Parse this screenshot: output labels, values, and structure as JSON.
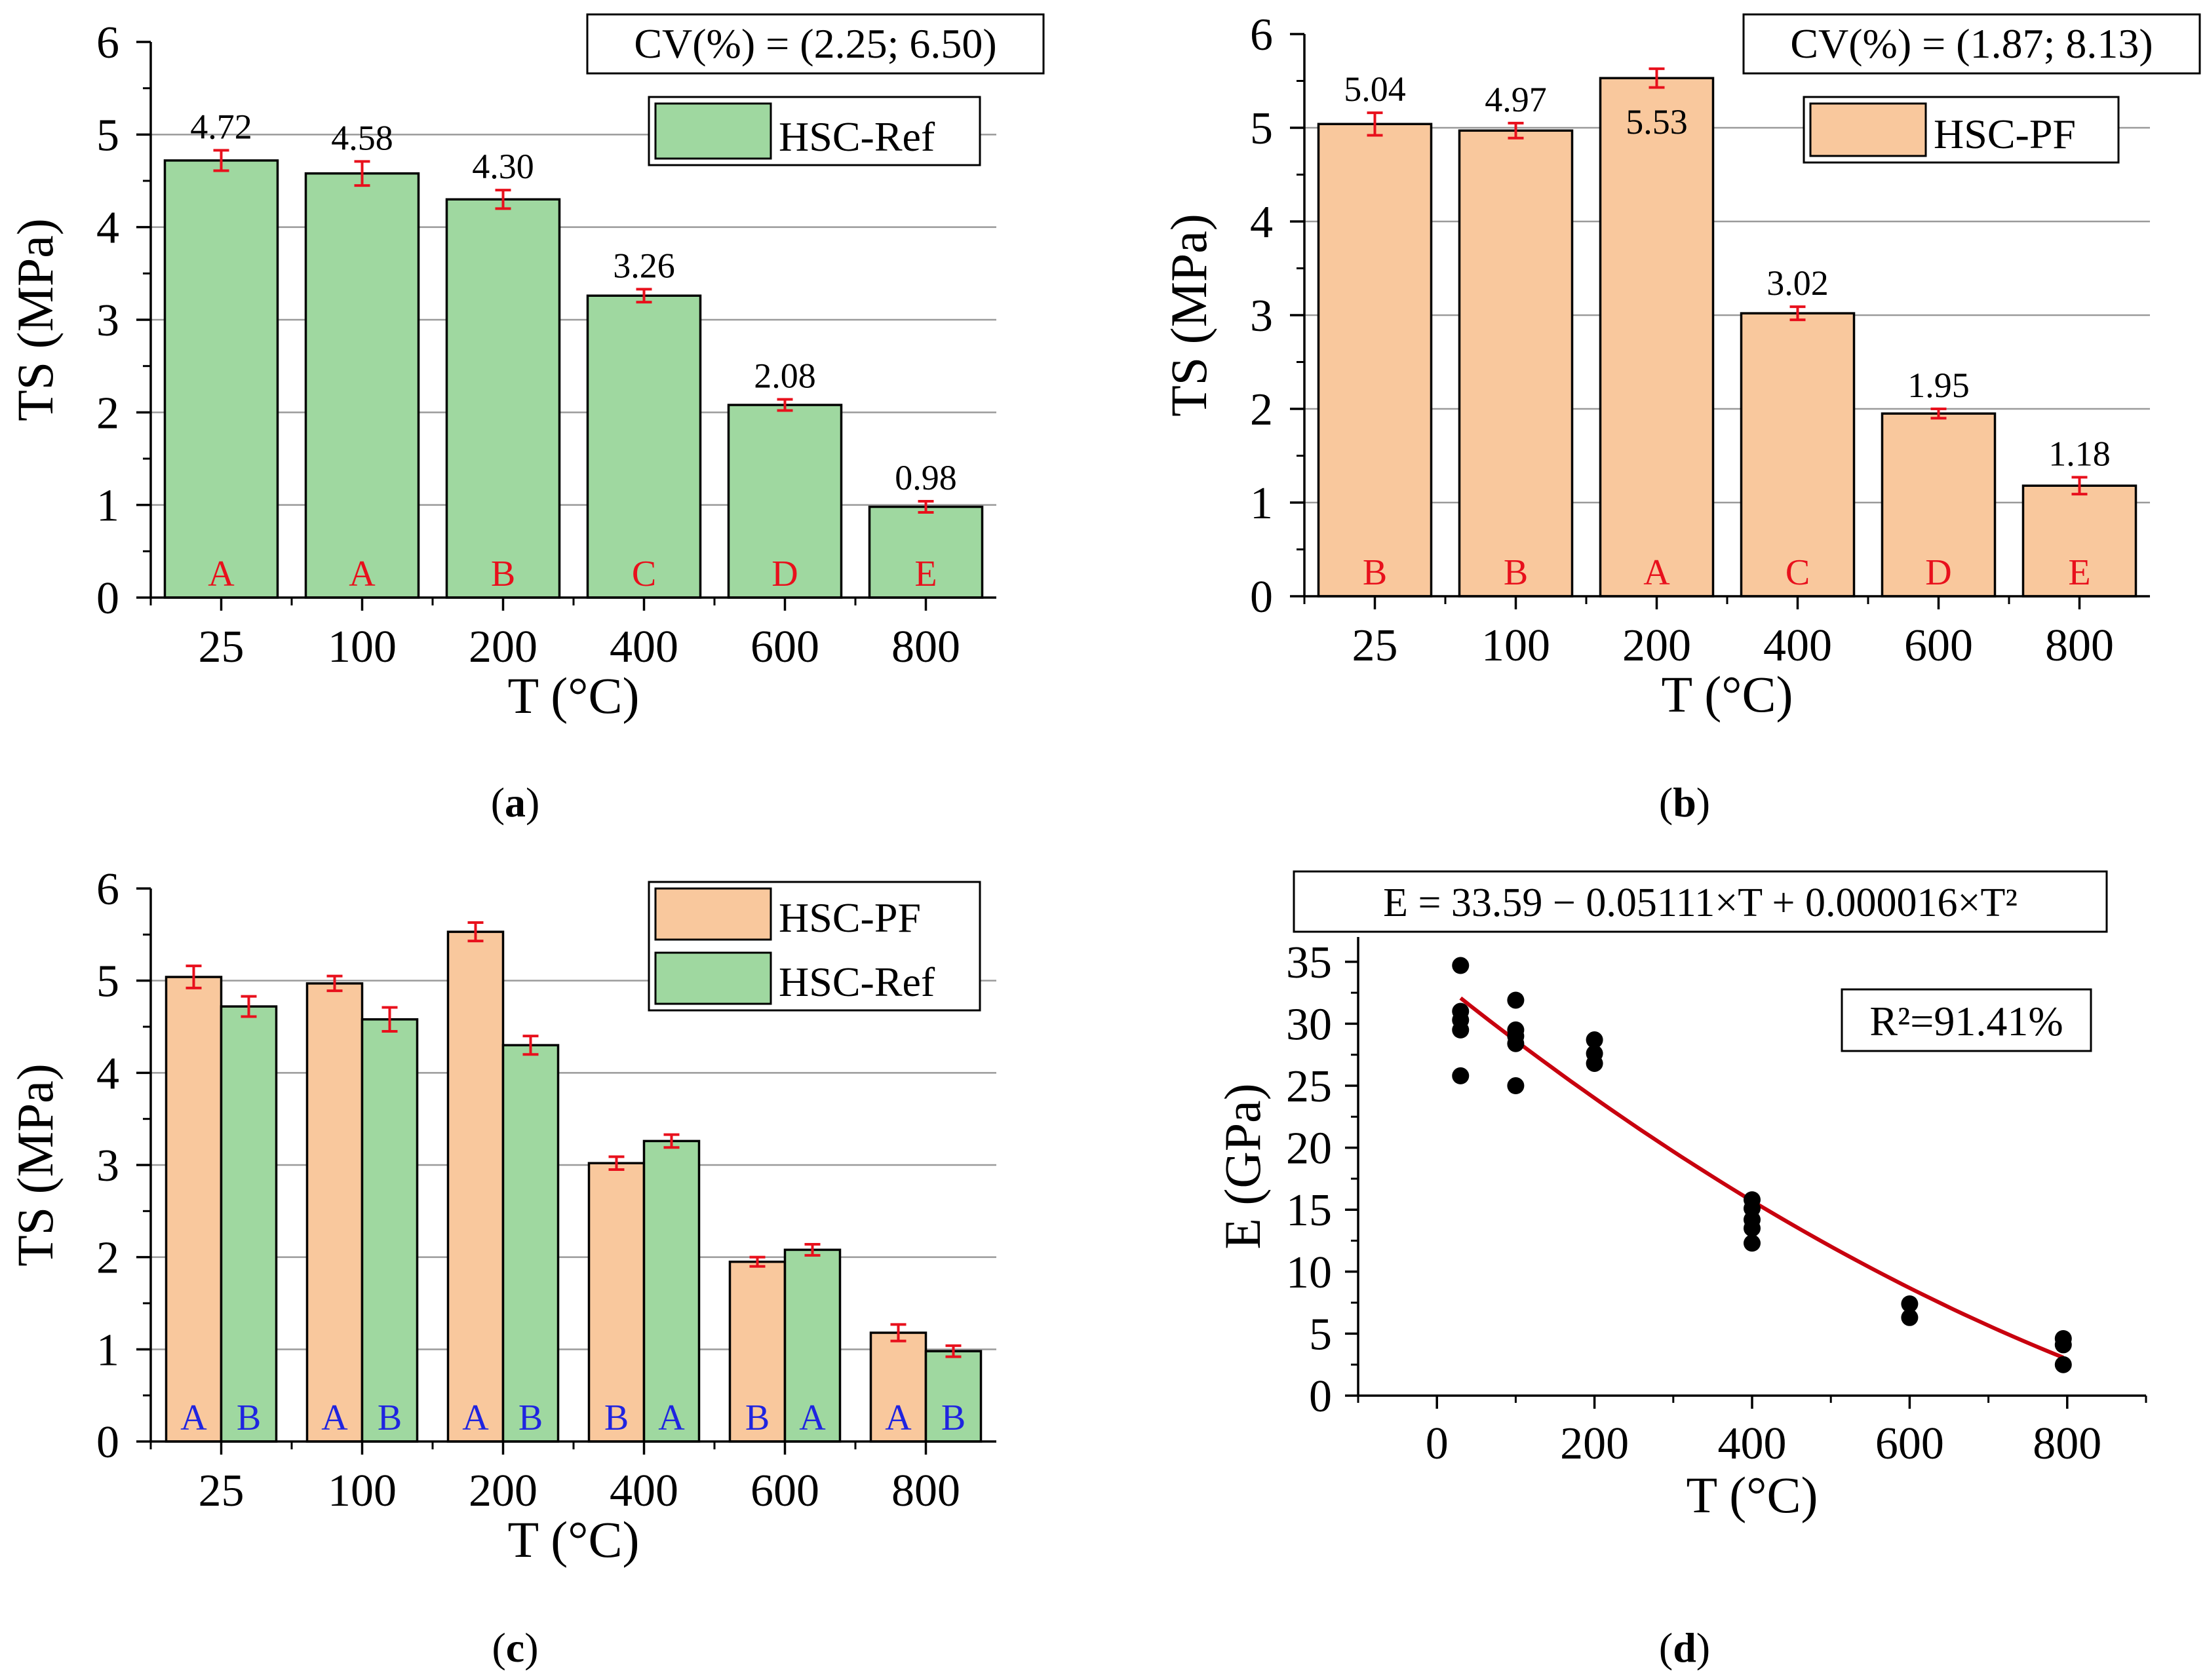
{
  "colors": {
    "ref": "#9fd8a0",
    "pf": "#f9c89d",
    "error": "#e8101c",
    "grid": "#9a9a9a",
    "letter_red": "#e8101c",
    "letter_blue": "#1f24e0",
    "curve": "#c8000e",
    "point": "#000000"
  },
  "chart_data": [
    {
      "id": "a",
      "type": "bar",
      "panel_label": "a",
      "categories": [
        "25",
        "100",
        "200",
        "400",
        "600",
        "800"
      ],
      "series": [
        {
          "name": "HSC-Ref",
          "color_key": "ref",
          "values": [
            4.72,
            4.58,
            4.3,
            3.26,
            2.08,
            0.98
          ],
          "errors": [
            0.11,
            0.13,
            0.1,
            0.07,
            0.06,
            0.06
          ],
          "value_labels": [
            "4.72",
            "4.58",
            "4.30",
            "3.26",
            "2.08",
            "0.98"
          ],
          "group_letters": [
            "A",
            "A",
            "B",
            "C",
            "D",
            "E"
          ]
        }
      ],
      "ylim": [
        0,
        6
      ],
      "yticks": [
        "0",
        "1",
        "2",
        "3",
        "4",
        "5",
        "6"
      ],
      "xlabel": "T (°C)",
      "ylabel": "TS (MPa)",
      "legend": [
        "HSC-Ref"
      ],
      "annotation": "CV(%) = (2.25; 6.50)"
    },
    {
      "id": "b",
      "type": "bar",
      "panel_label": "b",
      "categories": [
        "25",
        "100",
        "200",
        "400",
        "600",
        "800"
      ],
      "series": [
        {
          "name": "HSC-PF",
          "color_key": "pf",
          "values": [
            5.04,
            4.97,
            5.53,
            3.02,
            1.95,
            1.18
          ],
          "errors": [
            0.12,
            0.08,
            0.1,
            0.07,
            0.05,
            0.09
          ],
          "value_labels": [
            "5.04",
            "4.97",
            "5.53",
            "3.02",
            "1.95",
            "1.18"
          ],
          "group_letters": [
            "B",
            "B",
            "A",
            "C",
            "D",
            "E"
          ]
        }
      ],
      "ylim": [
        0,
        6
      ],
      "yticks": [
        "0",
        "1",
        "2",
        "3",
        "4",
        "5",
        "6"
      ],
      "xlabel": "T (°C)",
      "ylabel": "TS (MPa)",
      "legend": [
        "HSC-PF"
      ],
      "annotation": "CV(%) = (1.87; 8.13)"
    },
    {
      "id": "c",
      "type": "bar",
      "panel_label": "c",
      "categories": [
        "25",
        "100",
        "200",
        "400",
        "600",
        "800"
      ],
      "series": [
        {
          "name": "HSC-PF",
          "color_key": "pf",
          "values": [
            5.04,
            4.97,
            5.53,
            3.02,
            1.95,
            1.18
          ],
          "errors": [
            0.12,
            0.08,
            0.1,
            0.07,
            0.05,
            0.09
          ],
          "group_letters": [
            "A",
            "A",
            "A",
            "B",
            "B",
            "A"
          ]
        },
        {
          "name": "HSC-Ref",
          "color_key": "ref",
          "values": [
            4.72,
            4.58,
            4.3,
            3.26,
            2.08,
            0.98
          ],
          "errors": [
            0.11,
            0.13,
            0.1,
            0.07,
            0.06,
            0.06
          ],
          "group_letters": [
            "B",
            "B",
            "B",
            "A",
            "A",
            "B"
          ]
        }
      ],
      "ylim": [
        0,
        6
      ],
      "yticks": [
        "0",
        "1",
        "2",
        "3",
        "4",
        "5",
        "6"
      ],
      "xlabel": "T (°C)",
      "ylabel": "TS (MPa)",
      "legend": [
        "HSC-PF",
        "HSC-Ref"
      ]
    },
    {
      "id": "d",
      "type": "scatter",
      "panel_label": "d",
      "points": [
        [
          30,
          34.7
        ],
        [
          30,
          31.0
        ],
        [
          30,
          30.3
        ],
        [
          30,
          29.5
        ],
        [
          30,
          25.8
        ],
        [
          100,
          31.9
        ],
        [
          100,
          29.5
        ],
        [
          100,
          29.0
        ],
        [
          100,
          28.4
        ],
        [
          100,
          25.0
        ],
        [
          200,
          28.7
        ],
        [
          200,
          27.6
        ],
        [
          200,
          26.8
        ],
        [
          400,
          15.8
        ],
        [
          400,
          15.1
        ],
        [
          400,
          14.2
        ],
        [
          400,
          13.5
        ],
        [
          400,
          12.3
        ],
        [
          600,
          7.4
        ],
        [
          600,
          6.3
        ],
        [
          795,
          4.6
        ],
        [
          795,
          4.1
        ],
        [
          795,
          2.5
        ]
      ],
      "fit": {
        "intercept": 33.59,
        "linear": -0.05111,
        "quadratic": 1.6e-05,
        "x_range": [
          30,
          795
        ]
      },
      "xlim": [
        -100,
        900
      ],
      "ylim": [
        0,
        37
      ],
      "xticks": [
        "0",
        "200",
        "400",
        "600",
        "800"
      ],
      "yticks": [
        "0",
        "5",
        "10",
        "15",
        "20",
        "25",
        "30",
        "35"
      ],
      "xlabel": "T (°C)",
      "ylabel": "E (GPa)",
      "equation": "E = 33.59 − 0.05111×T + 0.000016×T²",
      "r2_label": "R²=91.41%"
    }
  ]
}
